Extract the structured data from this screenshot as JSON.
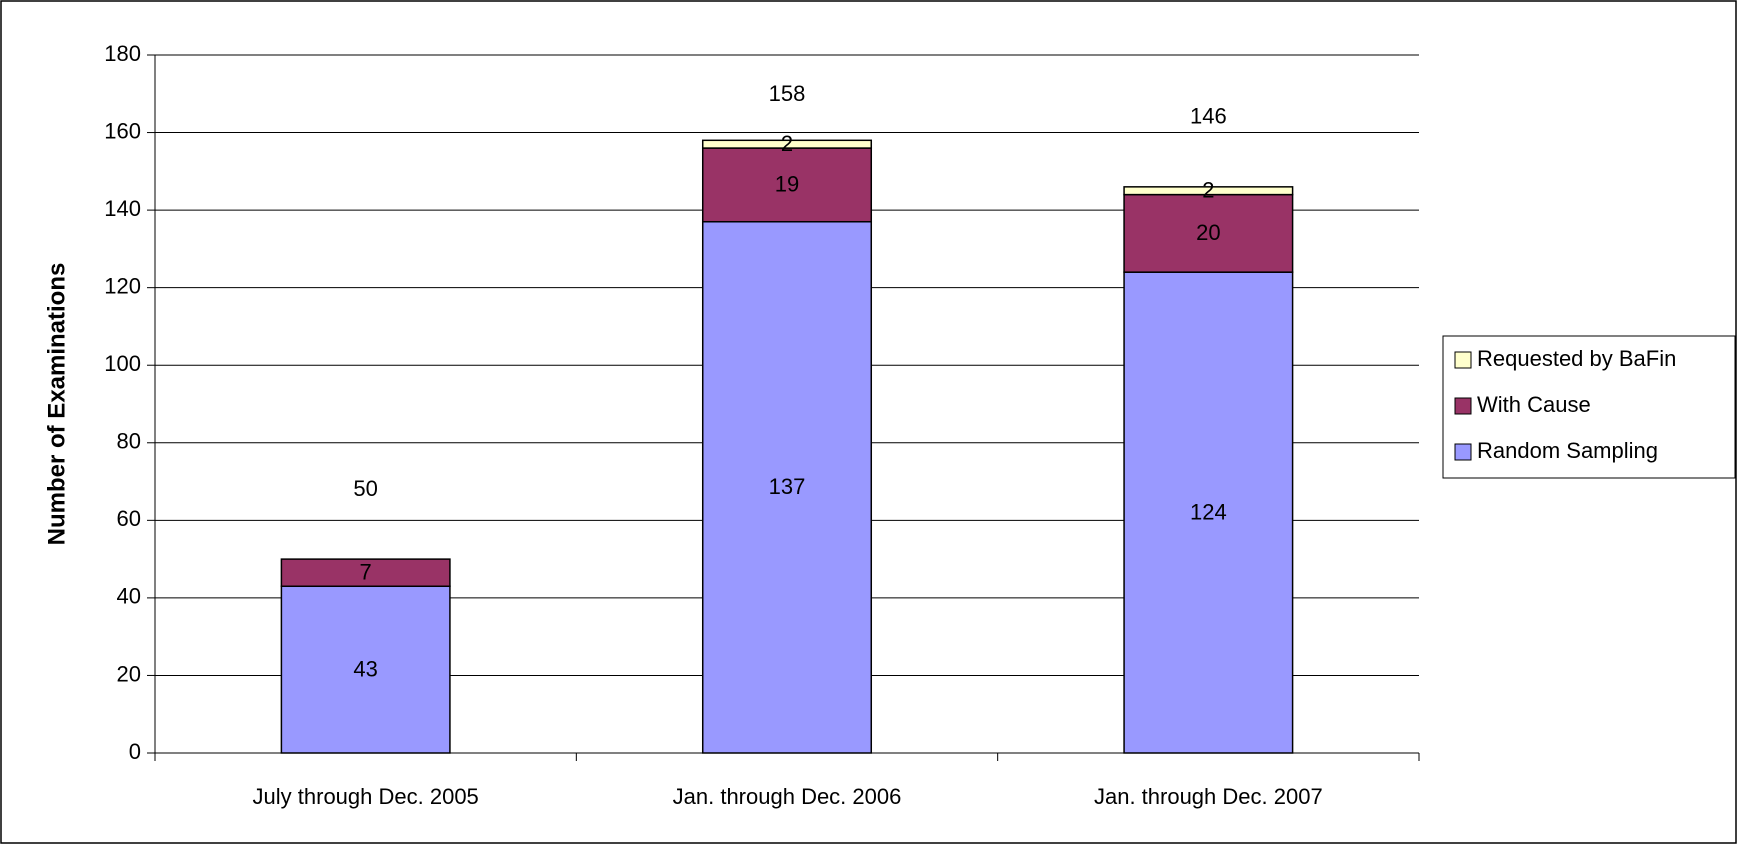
{
  "chart_data": {
    "type": "stacked-bar",
    "y_axis_label": "Number of Examinations",
    "categories": [
      "July through Dec. 2005",
      "Jan. through Dec. 2006",
      "Jan. through Dec. 2007"
    ],
    "series": [
      {
        "name": "Random Sampling",
        "color": "#9999ff",
        "values": [
          43,
          137,
          124
        ]
      },
      {
        "name": "With Cause",
        "color": "#993366",
        "values": [
          7,
          19,
          20
        ]
      },
      {
        "name": "Requested by BaFin",
        "color": "#ffffcc",
        "values": [
          null,
          2,
          2
        ]
      }
    ],
    "totals": [
      50,
      158,
      146
    ],
    "ylim": [
      0,
      180
    ],
    "yticks": [
      0,
      20,
      40,
      60,
      80,
      100,
      120,
      140,
      160,
      180
    ],
    "grid": true,
    "legend": "right"
  }
}
